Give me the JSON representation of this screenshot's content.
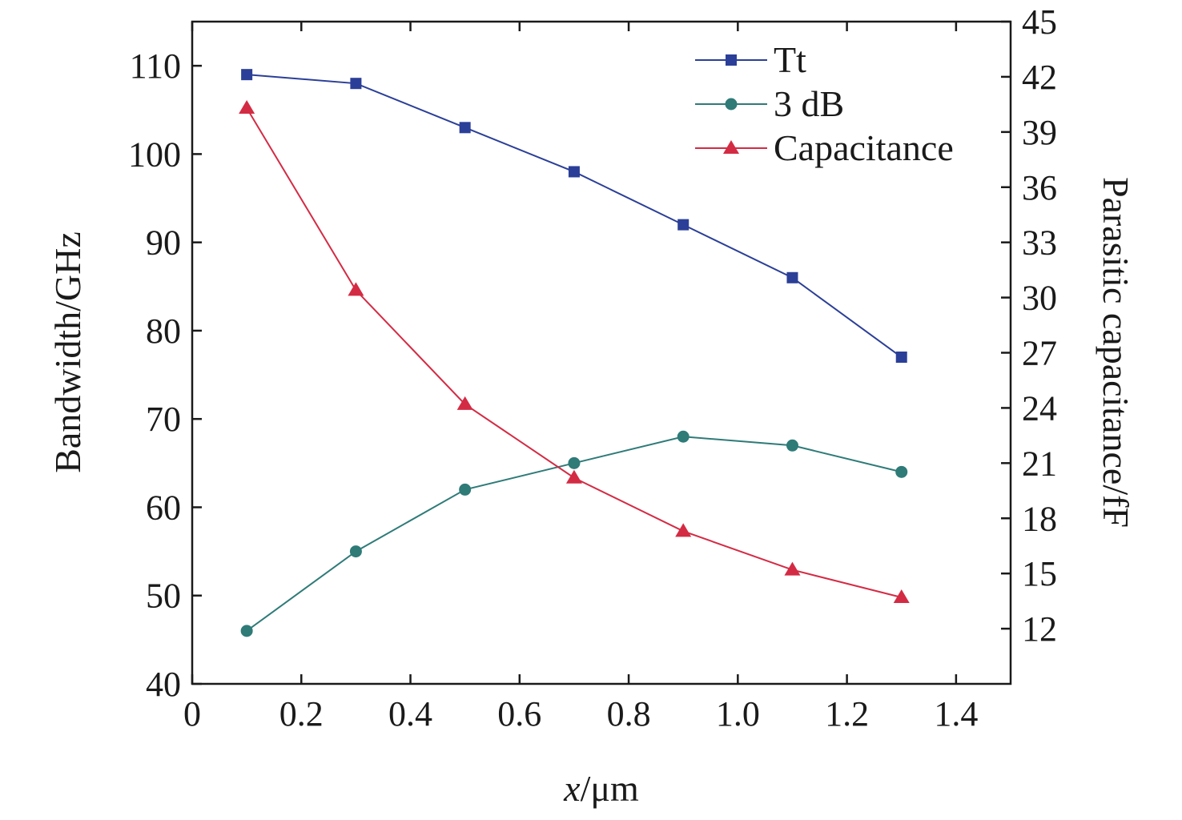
{
  "chart_data": {
    "type": "line",
    "x": [
      0.1,
      0.3,
      0.5,
      0.7,
      0.9,
      1.1,
      1.3
    ],
    "xlabel_italic": "x",
    "xlabel_rest": "/μm",
    "ylabel_left": "Bandwidth/GHz",
    "ylabel_right": "Parasitic capacitance/fF",
    "xlim": [
      0,
      1.5
    ],
    "ylim_left": [
      40,
      115
    ],
    "ylim_right": [
      9,
      45
    ],
    "x_ticks": [
      0,
      0.2,
      0.4,
      0.6,
      0.8,
      1.0,
      1.2,
      1.4
    ],
    "x_tick_labels": [
      "0",
      "0.2",
      "0.4",
      "0.6",
      "0.8",
      "1.0",
      "1.2",
      "1.4"
    ],
    "y_left_ticks": [
      40,
      50,
      60,
      70,
      80,
      90,
      100,
      110
    ],
    "y_left_tick_labels": [
      "40",
      "50",
      "60",
      "70",
      "80",
      "90",
      "100",
      "110"
    ],
    "y_right_ticks": [
      12,
      15,
      18,
      21,
      24,
      27,
      30,
      33,
      36,
      39,
      42,
      45
    ],
    "y_right_tick_labels": [
      "12",
      "15",
      "18",
      "21",
      "24",
      "27",
      "30",
      "33",
      "36",
      "39",
      "42",
      "45"
    ],
    "grid": false,
    "legend_position": "top-right",
    "series": [
      {
        "name": "Tt",
        "axis": "left",
        "marker": "square",
        "color": "#2b3f98",
        "values": [
          109,
          108,
          103,
          98,
          92,
          86,
          77
        ]
      },
      {
        "name": "3 dB",
        "axis": "left",
        "marker": "circle",
        "color": "#2e7b78",
        "values": [
          46,
          55,
          62,
          65,
          68,
          67,
          64
        ]
      },
      {
        "name": "Capacitance",
        "axis": "right",
        "marker": "triangle",
        "color": "#d42b44",
        "values": [
          40.3,
          30.4,
          24.2,
          20.2,
          17.3,
          15.2,
          13.7
        ]
      }
    ]
  }
}
